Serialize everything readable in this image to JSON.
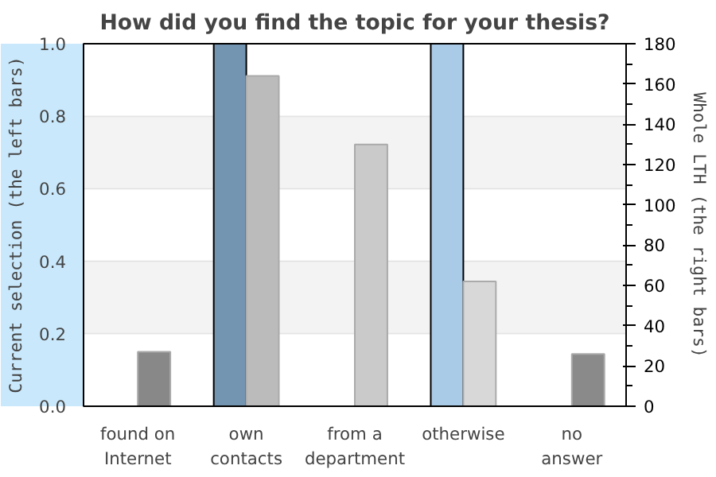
{
  "chart_data": {
    "type": "bar",
    "title": "How did you find the topic for your thesis?",
    "ylabel": "Current selection (the left bars)",
    "y2label": "Whole LTH (the right bars)",
    "categories": [
      "found on\nInternet",
      "own\ncontacts",
      "from a\ndepartment",
      "otherwise",
      "no\nanswer"
    ],
    "series": [
      {
        "colors": [
          null,
          "#7495b1",
          null,
          "#aacbe7",
          null
        ],
        "values": [
          0,
          1.0,
          0,
          1.0,
          0
        ]
      },
      {
        "axis": "y2",
        "colors": [
          "#888888",
          "#bbbbbb",
          "#cacaca",
          "#d8d8d8",
          "#8a8a8a"
        ],
        "values": [
          27,
          164,
          130,
          62,
          26
        ]
      }
    ],
    "ylim": [
      0,
      1.0
    ],
    "yticks": [
      {
        "value": 0,
        "label": "0.0"
      },
      0.2,
      0.4,
      0.6,
      0.8,
      {
        "value": 1,
        "label": "1.0"
      }
    ],
    "y2lim": [
      0,
      180
    ],
    "y2ticks": [
      0,
      20,
      40,
      60,
      80,
      100,
      120,
      140,
      160,
      180
    ],
    "bands": [
      {
        "axis": "y",
        "from": 0.2,
        "to": 0.4,
        "color": "#f3f3f3"
      },
      {
        "axis": "y",
        "from": 0.6,
        "to": 0.8,
        "color": "#f3f3f3"
      }
    ],
    "grid": "y"
  }
}
